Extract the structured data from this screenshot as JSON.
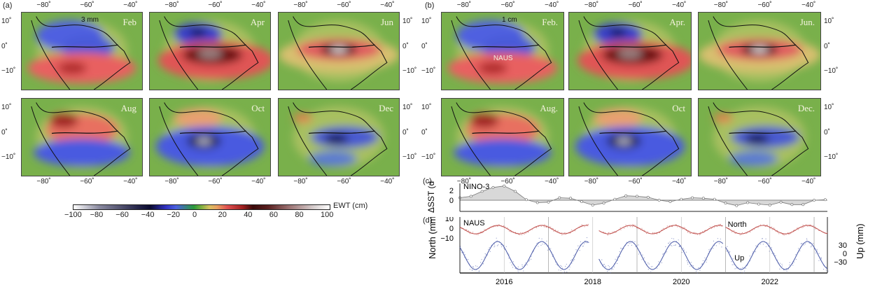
{
  "figure": {
    "panel_labels": {
      "a": "(a)",
      "b": "(b)",
      "c": "(c)",
      "d": "(d)"
    },
    "lon_ticks": [
      "−80˚",
      "−60˚",
      "−40˚"
    ],
    "lat_ticks": [
      "10˚",
      "0˚",
      "−10˚"
    ],
    "panel_a": {
      "scale_label": "3 mm",
      "months": [
        "Feb",
        "Apr",
        "Jun",
        "Aug",
        "Oct",
        "Dec"
      ]
    },
    "panel_b": {
      "scale_label": "1 cm",
      "station_label": "NAUS",
      "months": [
        "Feb.",
        "Apr.",
        "Jun.",
        "Aug.",
        "Oct",
        "Dec."
      ]
    },
    "colorbar": {
      "label": "EWT (cm)",
      "ticks": [
        "−100",
        "−80",
        "−60",
        "−40",
        "−20",
        "0",
        "20",
        "40",
        "60",
        "80",
        "100"
      ],
      "range": [
        -100,
        100
      ]
    }
  },
  "chart_data": [
    {
      "type": "area",
      "title": "NINO-3",
      "ylabel": "ΔSST (deg)",
      "ylim": [
        -1.5,
        3
      ],
      "yticks": [
        "2",
        "0"
      ],
      "x": [
        2015.0,
        2015.25,
        2015.5,
        2015.75,
        2016.0,
        2016.25,
        2016.5,
        2016.75,
        2017.0,
        2017.25,
        2017.5,
        2017.75,
        2018.0,
        2018.25,
        2018.5,
        2018.75,
        2019.0,
        2019.25,
        2019.5,
        2019.75,
        2020.0,
        2020.25,
        2020.5,
        2020.75,
        2021.0,
        2021.25,
        2021.5,
        2021.75,
        2022.0,
        2022.25,
        2022.5,
        2022.75,
        2023.0,
        2023.25
      ],
      "values": [
        0.5,
        0.8,
        1.8,
        2.6,
        2.9,
        1.8,
        0.1,
        -0.5,
        -0.4,
        0.5,
        0.4,
        -0.3,
        -1.0,
        -0.6,
        0.2,
        0.9,
        0.8,
        0.6,
        0.0,
        -0.3,
        0.2,
        0.5,
        0.4,
        0.2,
        -0.6,
        -1.1,
        -0.5,
        -0.8,
        -1.0,
        -0.4,
        -0.9,
        -0.9,
        0.0,
        0.1
      ]
    },
    {
      "type": "scatter",
      "title": "NAUS",
      "ylabel_left": "North (mm)",
      "ylabel_right": "Up (mm)",
      "xlim": [
        2015.0,
        2023.3
      ],
      "xticks": [
        "2016",
        "2018",
        "2020",
        "2022"
      ],
      "yticks_left": [
        "10",
        "0",
        "−10"
      ],
      "yticks_right": [
        "30",
        "0",
        "−30"
      ],
      "annotations": [
        "North",
        "Up"
      ],
      "series": [
        {
          "name": "North",
          "color": "#c0504d",
          "amplitude_mm": 4,
          "period_yr": 1.0,
          "peak_month_frac": 0.85,
          "ylim": [
            -15,
            12
          ]
        },
        {
          "name": "Up",
          "color": "#4a5aa8",
          "amplitude_mm": 35,
          "period_yr": 1.0,
          "peak_month_frac": 0.85,
          "ylim": [
            -45,
            45
          ]
        }
      ],
      "data_gaps": [
        [
          2017.9,
          2018.15
        ],
        [
          2020.95,
          2021.0
        ]
      ]
    }
  ]
}
